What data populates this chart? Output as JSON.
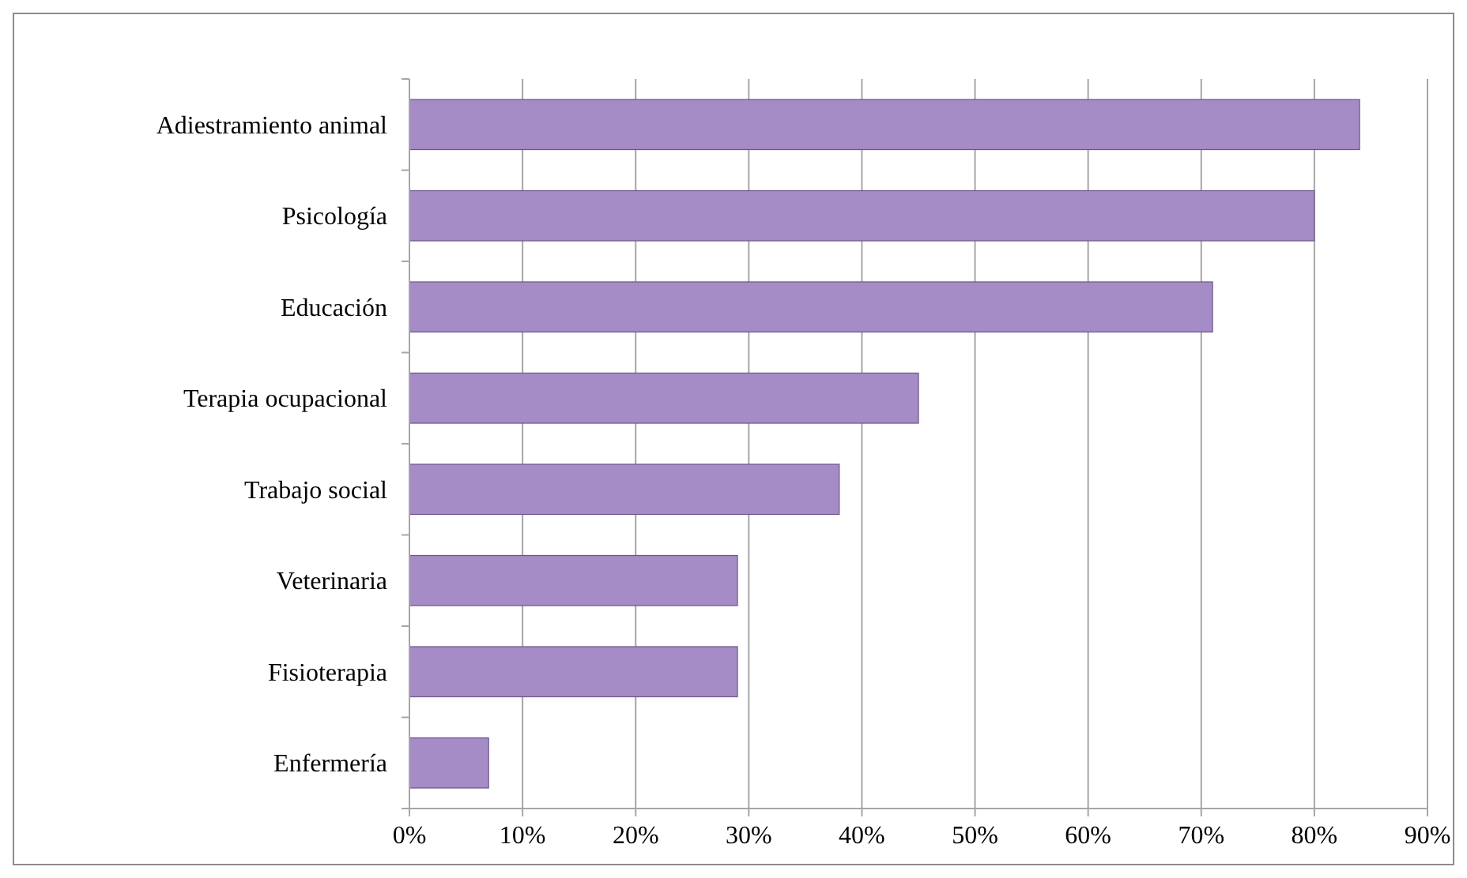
{
  "chart_data": {
    "type": "bar",
    "orientation": "horizontal",
    "categories": [
      "Adiestramiento animal",
      "Psicología",
      "Educación",
      "Terapia ocupacional",
      "Trabajo social",
      "Veterinaria",
      "Fisioterapia",
      "Enfermería"
    ],
    "values": [
      84,
      80,
      71,
      45,
      38,
      29,
      29,
      7
    ],
    "color": "#a58cc6",
    "xlim": [
      0,
      90
    ],
    "xticks": [
      {
        "value": 0,
        "label": "0%"
      },
      {
        "value": 10,
        "label": "10%"
      },
      {
        "value": 20,
        "label": "20%"
      },
      {
        "value": 30,
        "label": "30%"
      },
      {
        "value": 40,
        "label": "40%"
      },
      {
        "value": 50,
        "label": "50%"
      },
      {
        "value": 60,
        "label": "60%"
      },
      {
        "value": 70,
        "label": "70%"
      },
      {
        "value": 80,
        "label": "80%"
      },
      {
        "value": 90,
        "label": "90%"
      }
    ],
    "grid": "x"
  }
}
